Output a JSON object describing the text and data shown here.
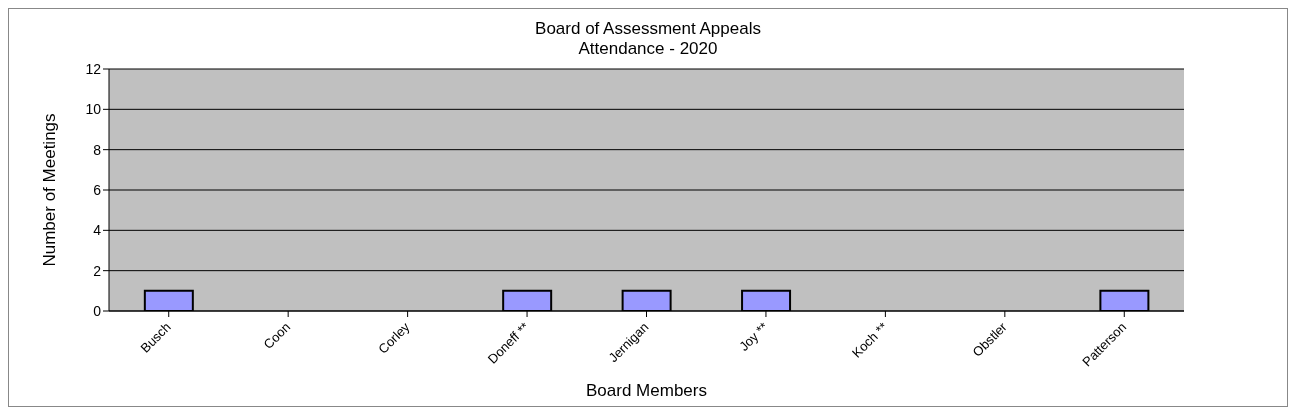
{
  "chart_data": {
    "type": "bar",
    "title": "Board of Assessment Appeals\nAttendance - 2020",
    "xlabel": "Board Members",
    "ylabel": "Number of Meetings",
    "categories": [
      "Busch",
      "Coon",
      "Corley",
      "Doneff **",
      "Jernigan",
      "Joy **",
      "Koch **",
      "Obstler",
      "Patterson"
    ],
    "values": [
      1,
      0,
      0,
      1,
      1,
      1,
      0,
      0,
      1
    ],
    "color": "#9999ff",
    "ylim": [
      0,
      12
    ],
    "yticks": [
      0,
      2,
      4,
      6,
      8,
      10,
      12
    ],
    "grid": "y",
    "legend": false
  }
}
